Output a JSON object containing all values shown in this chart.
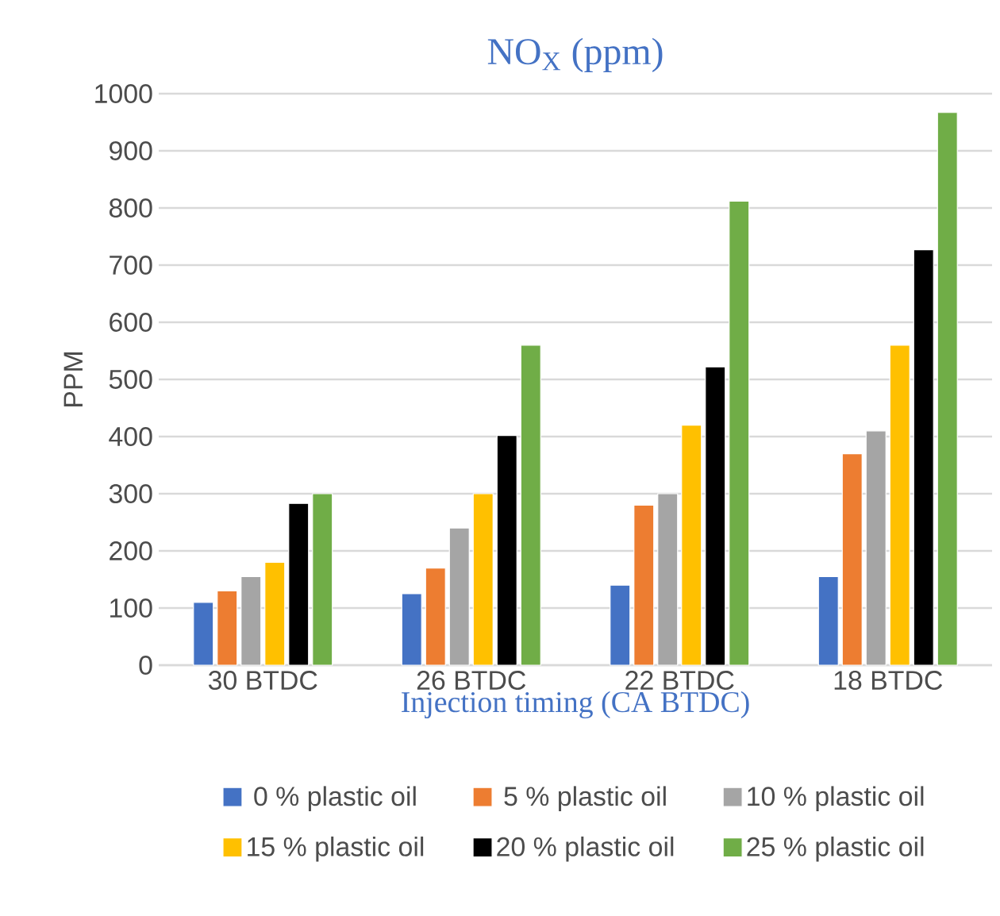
{
  "chart_data": {
    "type": "bar",
    "title": "NO$_{X}$ (ppm)",
    "xlabel": "Injection timing (CA BTDC)",
    "ylabel": "PPM",
    "categories": [
      "30 BTDC",
      "26 BTDC",
      "22 BTDC",
      "18 BTDC"
    ],
    "series": [
      {
        "name": "0 % plastic oil",
        "color": "#4472c4",
        "values": [
          110,
          125,
          140,
          155
        ]
      },
      {
        "name": "5 % plastic oil",
        "color": "#ed7d31",
        "values": [
          130,
          170,
          280,
          370
        ]
      },
      {
        "name": "10 % plastic oil",
        "color": "#a5a5a5",
        "values": [
          155,
          240,
          300,
          410
        ]
      },
      {
        "name": "15 % plastic oil",
        "color": "#ffc000",
        "values": [
          180,
          300,
          420,
          560
        ]
      },
      {
        "name": "20 % plastic oil",
        "color": "#000000",
        "values": [
          283,
          402,
          522,
          727
        ]
      },
      {
        "name": "25 % plastic oil",
        "color": "#70ad47",
        "values": [
          300,
          560,
          812,
          967
        ]
      }
    ],
    "ylim": [
      0,
      1000
    ],
    "yticks": [
      0,
      100,
      200,
      300,
      400,
      500,
      600,
      700,
      800,
      900,
      1000
    ],
    "grid": "y",
    "legend": "bottom"
  }
}
